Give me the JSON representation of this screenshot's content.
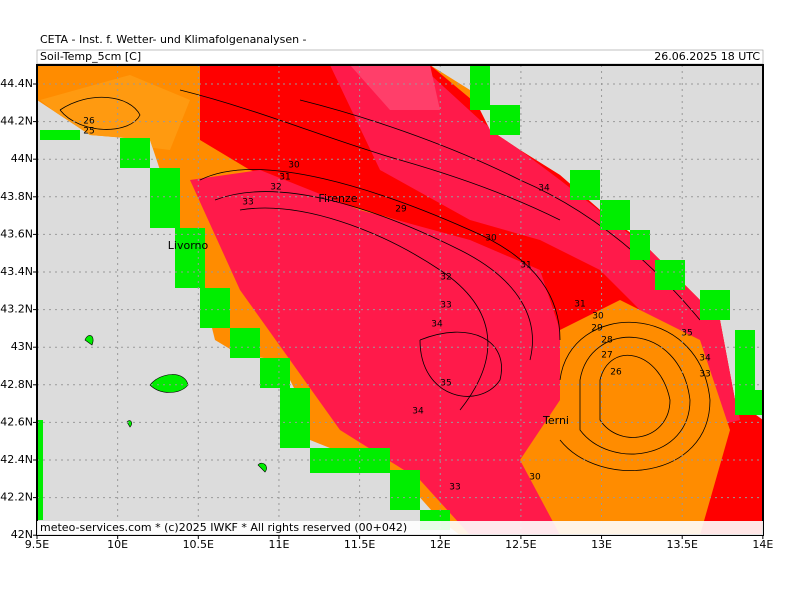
{
  "header": {
    "title": "CETA - Inst. f. Wetter- und Klimafolgenanalysen -",
    "field": "Soil-Temp_5cm [C]",
    "valid": "26.06.2025 18 UTC"
  },
  "axes": {
    "x_labels": [
      "9.5E",
      "10E",
      "10.5E",
      "11E",
      "11.5E",
      "12E",
      "12.5E",
      "13E",
      "13.5E",
      "14E"
    ],
    "y_labels": [
      "44.4N",
      "44.2N",
      "44N",
      "43.8N",
      "43.6N",
      "43.4N",
      "43.2N",
      "43N",
      "42.8N",
      "42.6N",
      "42.4N",
      "42.2N",
      "42N"
    ]
  },
  "contour_labels": [
    "26",
    "25",
    "30",
    "31",
    "32",
    "33",
    "29",
    "30",
    "31",
    "32",
    "33",
    "34",
    "35",
    "34",
    "33",
    "30",
    "34",
    "31",
    "30",
    "29",
    "28",
    "27",
    "26",
    "35",
    "34",
    "33"
  ],
  "places": [
    "Livorno",
    "Firenze",
    "Terni"
  ],
  "footer": "meteo-services.com * (c)2025 IWKF * All rights reserved (00+042)"
}
